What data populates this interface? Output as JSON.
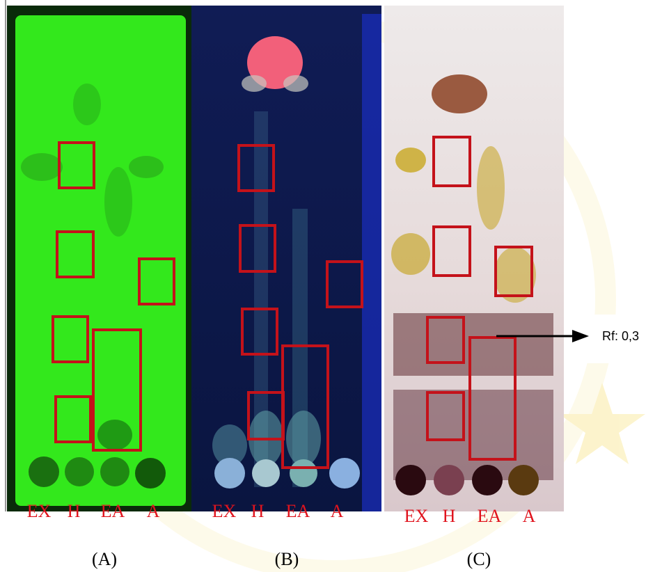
{
  "panels": [
    {
      "lanes": [
        "EX",
        "H",
        "EA",
        "A"
      ],
      "caption": "(A)"
    },
    {
      "lanes": [
        "EX",
        "H",
        "EA",
        "A"
      ],
      "caption": "(B)"
    },
    {
      "lanes": [
        "EX",
        "H",
        "EA",
        "A"
      ],
      "caption": "(C)"
    }
  ],
  "annotation": "Rf: 0,3"
}
